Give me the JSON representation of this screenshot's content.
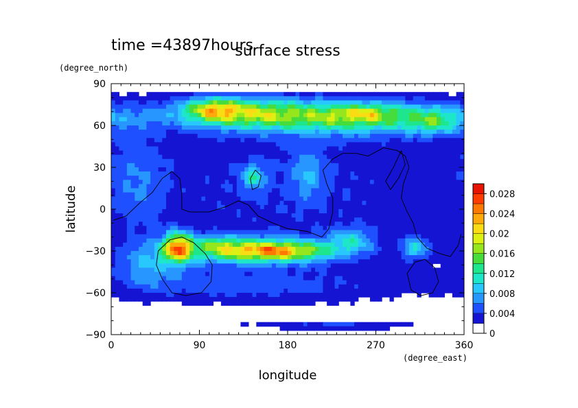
{
  "chart_data": {
    "type": "heatmap",
    "title": "surface stress",
    "time_label": "time =43897hours",
    "xlabel": "longitude",
    "ylabel": "latitude",
    "xunit": "(degree_east)",
    "yunit": "(degree_north)",
    "xlim": [
      0,
      360
    ],
    "ylim": [
      -90,
      90
    ],
    "xticks": [
      0,
      90,
      180,
      270,
      360
    ],
    "xtick_labels": [
      "0",
      "90",
      "180",
      "270",
      "360"
    ],
    "yticks": [
      -90,
      -60,
      -30,
      0,
      30,
      60,
      90
    ],
    "ytick_labels": [
      "−90",
      "−60",
      "−30",
      "0",
      "30",
      "60",
      "90"
    ],
    "colorbar": {
      "levels": [
        0,
        0.002,
        0.004,
        0.006,
        0.008,
        0.01,
        0.012,
        0.014,
        0.016,
        0.018,
        0.02,
        0.022,
        0.024,
        0.026,
        0.028,
        0.03
      ],
      "tick_values": [
        0,
        0.004,
        0.008,
        0.012,
        0.016,
        0.02,
        0.024,
        0.028
      ],
      "tick_labels": [
        "0",
        "0.004",
        "0.008",
        "0.012",
        "0.016",
        "0.02",
        "0.024",
        "0.028"
      ],
      "colors": [
        "#ffffff",
        "#1414d2",
        "#1e50ff",
        "#2896ff",
        "#28c8ff",
        "#1ee6c8",
        "#1ee68c",
        "#46dc3c",
        "#96e61e",
        "#dcf014",
        "#fadc14",
        "#ffaa0a",
        "#ff7800",
        "#ff3c00",
        "#e61400"
      ]
    },
    "features": [
      {
        "name": "north-jet",
        "lon": 240,
        "lat": 66,
        "slon": 90,
        "slat": 8,
        "amp": 0.015
      },
      {
        "name": "north-jet-west",
        "lon": 125,
        "lat": 70,
        "slon": 45,
        "slat": 7,
        "amp": 0.012
      },
      {
        "name": "north-jet-core-a",
        "lon": 105,
        "lat": 72,
        "slon": 16,
        "slat": 5,
        "amp": 0.01
      },
      {
        "name": "north-jet-core-b",
        "lon": 258,
        "lat": 69,
        "slon": 22,
        "slat": 4,
        "amp": 0.007
      },
      {
        "name": "north-jet-east",
        "lon": 330,
        "lat": 62,
        "slon": 16,
        "slat": 6,
        "amp": 0.007
      },
      {
        "name": "south-jet",
        "lon": 150,
        "lat": -30,
        "slon": 55,
        "slat": 6,
        "amp": 0.018
      },
      {
        "name": "south-jet-core",
        "lon": 170,
        "lat": -30,
        "slon": 30,
        "slat": 4,
        "amp": 0.008
      },
      {
        "name": "south-jet-core-b",
        "lon": 110,
        "lat": -24,
        "slon": 15,
        "slat": 4,
        "amp": 0.006
      },
      {
        "name": "south-west-spot",
        "lon": 68,
        "lat": -27,
        "slon": 10,
        "slat": 7,
        "amp": 0.022
      },
      {
        "name": "background-band",
        "lon": 180,
        "lat": 15,
        "slon": 200,
        "slat": 55,
        "amp": 0.0045
      },
      {
        "name": "mid-north-spot",
        "lon": 145,
        "lat": 23,
        "slon": 8,
        "slat": 6,
        "amp": 0.009
      },
      {
        "name": "mid-spot-b",
        "lon": 200,
        "lat": 25,
        "slon": 12,
        "slat": 12,
        "amp": 0.005
      },
      {
        "name": "south-east-spot",
        "lon": 310,
        "lat": -28,
        "slon": 10,
        "slat": 6,
        "amp": 0.008
      },
      {
        "name": "south-mid-spot",
        "lon": 245,
        "lat": -22,
        "slon": 14,
        "slat": 6,
        "amp": 0.007
      },
      {
        "name": "south-west-ring",
        "lon": 40,
        "lat": -40,
        "slon": 25,
        "slat": 10,
        "amp": 0.006
      },
      {
        "name": "southern-low",
        "lon": 130,
        "lat": -55,
        "slon": 110,
        "slat": 8,
        "amp": 0.004
      },
      {
        "name": "west-mid",
        "lon": 25,
        "lat": 20,
        "slon": 20,
        "slat": 25,
        "amp": 0.004
      },
      {
        "name": "polar-sliver",
        "lon": 230,
        "lat": -83,
        "slon": 60,
        "slat": 2.5,
        "amp": 0.004
      }
    ],
    "contours": [
      {
        "name": "continent-a",
        "points": [
          [
            2,
            -8
          ],
          [
            15,
            -5
          ],
          [
            30,
            5
          ],
          [
            42,
            12
          ],
          [
            52,
            22
          ],
          [
            62,
            27
          ],
          [
            70,
            22
          ],
          [
            72,
            10
          ],
          [
            72,
            0
          ],
          [
            80,
            -2
          ],
          [
            100,
            -2
          ],
          [
            118,
            2
          ],
          [
            130,
            6
          ],
          [
            140,
            3
          ],
          [
            150,
            -5
          ],
          [
            165,
            -10
          ],
          [
            180,
            -14
          ],
          [
            200,
            -16
          ],
          [
            215,
            -20
          ],
          [
            222,
            -14
          ],
          [
            226,
            -2
          ],
          [
            226,
            8
          ],
          [
            220,
            18
          ],
          [
            216,
            28
          ],
          [
            226,
            36
          ],
          [
            236,
            40
          ],
          [
            250,
            40
          ],
          [
            262,
            38
          ],
          [
            278,
            44
          ],
          [
            292,
            42
          ],
          [
            300,
            38
          ],
          [
            304,
            30
          ],
          [
            298,
            18
          ],
          [
            296,
            8
          ],
          [
            302,
            -2
          ],
          [
            308,
            -10
          ],
          [
            312,
            -20
          ],
          [
            322,
            -28
          ],
          [
            336,
            -32
          ],
          [
            346,
            -34
          ],
          [
            354,
            -26
          ],
          [
            357,
            -18
          ]
        ]
      },
      {
        "name": "continent-b",
        "points": [
          [
            48,
            -30
          ],
          [
            60,
            -22
          ],
          [
            72,
            -20
          ],
          [
            84,
            -24
          ],
          [
            96,
            -32
          ],
          [
            103,
            -40
          ],
          [
            102,
            -52
          ],
          [
            92,
            -60
          ],
          [
            76,
            -62
          ],
          [
            62,
            -60
          ],
          [
            52,
            -50
          ],
          [
            46,
            -40
          ],
          [
            48,
            -30
          ]
        ]
      },
      {
        "name": "continent-c",
        "points": [
          [
            302,
            -46
          ],
          [
            310,
            -38
          ],
          [
            320,
            -36
          ],
          [
            330,
            -42
          ],
          [
            334,
            -52
          ],
          [
            328,
            -60
          ],
          [
            316,
            -62
          ],
          [
            306,
            -58
          ],
          [
            302,
            -46
          ]
        ]
      },
      {
        "name": "continent-d",
        "points": [
          [
            142,
            22
          ],
          [
            147,
            28
          ],
          [
            153,
            24
          ],
          [
            150,
            16
          ],
          [
            144,
            14
          ],
          [
            142,
            22
          ]
        ]
      },
      {
        "name": "continent-e",
        "points": [
          [
            296,
            42
          ],
          [
            288,
            30
          ],
          [
            280,
            20
          ],
          [
            285,
            14
          ],
          [
            293,
            22
          ],
          [
            300,
            32
          ],
          [
            296,
            42
          ]
        ]
      }
    ]
  }
}
